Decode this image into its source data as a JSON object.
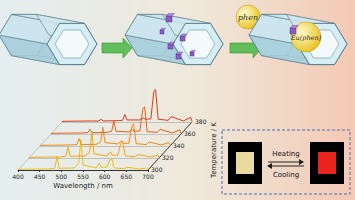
{
  "scheme": {
    "labels": [
      "phen",
      "Eu(phen)"
    ]
  },
  "chart_data": {
    "type": "line",
    "x_label": "Wavelength / nm",
    "z_label": "Temperature / K",
    "xlim": [
      400,
      700
    ],
    "xticks": [
      400,
      450,
      500,
      550,
      600,
      650,
      700
    ],
    "ylim": [
      0,
      100
    ],
    "tick_labels": "x",
    "x": [
      400,
      470,
      485,
      490,
      495,
      530,
      540,
      545,
      550,
      580,
      588,
      592,
      605,
      612,
      616,
      622,
      645,
      652,
      680,
      697,
      700
    ],
    "series": [
      {
        "name": "300",
        "color": "#e8c21a",
        "values": [
          2,
          3,
          5,
          40,
          5,
          6,
          20,
          90,
          15,
          6,
          20,
          8,
          8,
          30,
          35,
          6,
          4,
          8,
          3,
          6,
          2
        ]
      },
      {
        "name": "320",
        "color": "#f0a818",
        "values": [
          2,
          3,
          5,
          32,
          5,
          6,
          16,
          75,
          12,
          6,
          18,
          8,
          8,
          45,
          50,
          6,
          4,
          10,
          3,
          8,
          2
        ]
      },
      {
        "name": "340",
        "color": "#f08a18",
        "values": [
          2,
          3,
          4,
          22,
          4,
          5,
          12,
          55,
          10,
          6,
          15,
          8,
          8,
          60,
          65,
          7,
          4,
          12,
          3,
          10,
          2
        ]
      },
      {
        "name": "360",
        "color": "#e8601a",
        "values": [
          2,
          3,
          4,
          14,
          4,
          5,
          8,
          38,
          8,
          6,
          14,
          8,
          9,
          75,
          80,
          7,
          5,
          14,
          3,
          12,
          2
        ]
      },
      {
        "name": "380",
        "color": "#d83a20",
        "values": [
          2,
          3,
          3,
          8,
          3,
          4,
          5,
          22,
          6,
          6,
          12,
          8,
          9,
          90,
          95,
          8,
          5,
          16,
          3,
          14,
          2
        ]
      }
    ]
  },
  "photos": {
    "upper": "Heating",
    "lower": "Cooling",
    "colors": [
      "#e9dba0",
      "#e8241c"
    ]
  }
}
